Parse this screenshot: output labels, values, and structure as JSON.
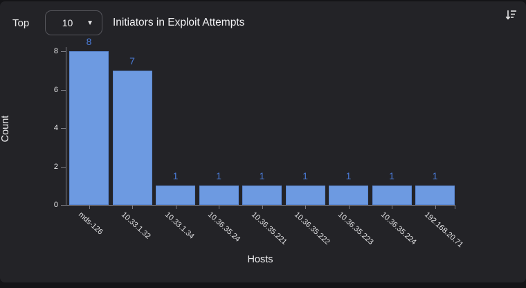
{
  "header": {
    "top_label": "Top",
    "dropdown_value": "10",
    "title": "Initiators in Exploit Attempts"
  },
  "icons": {
    "dropdown_caret": "▼",
    "sort_icon_name": "sort-descending-icon"
  },
  "chart_data": {
    "type": "bar",
    "title": "Top 10 Initiators in Exploit Attempts",
    "categories": [
      "mds-126",
      "10.33.1.32",
      "10.33.1.34",
      "10.36.35.24",
      "10.36.35.221",
      "10.36.35.222",
      "10.36.35.223",
      "10.36.35.224",
      "192.168.20.71"
    ],
    "values": [
      8,
      7,
      1,
      1,
      1,
      1,
      1,
      1,
      1
    ],
    "xlabel": "Hosts",
    "ylabel": "Count",
    "ylim": [
      0,
      8
    ],
    "yticks": [
      0,
      2,
      4,
      6,
      8
    ],
    "grid": false,
    "legend": "none",
    "bar_color": "#6d9ae1",
    "bar_border_color": "#5c89d4",
    "value_label_color": "#4b7cd9"
  },
  "colors": {
    "page_background": "#141417",
    "card_background": "#232327",
    "axis": "#7d7d84",
    "text": "#ededee"
  }
}
